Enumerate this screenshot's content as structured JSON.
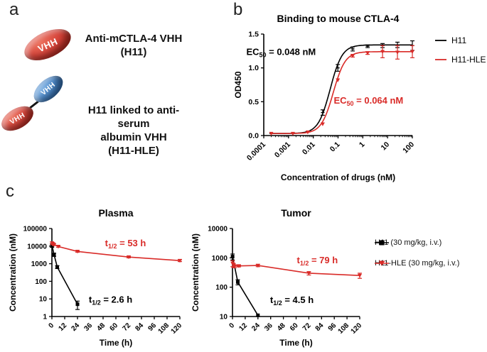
{
  "panels": {
    "a_label": "a",
    "b_label": "b",
    "c_label": "c"
  },
  "panel_a": {
    "molecule1": {
      "domain_label": "VHH",
      "caption": [
        "Anti-mCTLA-4 VHH",
        "(H11)"
      ]
    },
    "molecule2": {
      "blue_domain_label": "VHH",
      "red_domain_label": "VHH",
      "caption": [
        "H11 linked to anti-serum",
        "albumin VHH",
        "(H11-HLE)"
      ]
    },
    "colors": {
      "vhh_red": "#c93a31",
      "vhh_blue": "#4080c4"
    }
  },
  "panel_c": {
    "legend": {
      "items": [
        {
          "label": "H11 (30 mg/kg, i.v.)",
          "color": "#000000",
          "marker": "square"
        },
        {
          "label": "H11-HLE (30 mg/kg, i.v.)",
          "color": "#d92b28",
          "marker": "triangle"
        }
      ]
    }
  },
  "chart_data": [
    {
      "type": "line",
      "title": "Binding to mouse CTLA-4",
      "xlabel": "Concentration of drugs (nM)",
      "ylabel": "OD450",
      "xscale": "log",
      "xlim": [
        0.0001,
        100
      ],
      "yscale": "linear",
      "ylim": [
        0,
        1.5
      ],
      "xticks": [
        0.0001,
        0.001,
        0.01,
        0.1,
        1,
        10,
        100
      ],
      "xtick_labels": [
        "0.0001",
        "0.001",
        "0.01",
        "0.1",
        "1",
        "10",
        "100"
      ],
      "yticks": [
        0,
        0.5,
        1.0,
        1.5
      ],
      "ytick_labels": [
        "0.0",
        "0.5",
        "1.0",
        "1.5"
      ],
      "grid": false,
      "legend_position": "right",
      "series": [
        {
          "name": "H11",
          "color": "#000000",
          "marker": "tick",
          "ec50_nM": 0.048,
          "top": 1.34,
          "bottom": 0.03,
          "hill": 1.8,
          "points": {
            "x": [
              0.0002,
              0.0015,
              0.006,
              0.024,
              0.098,
              0.39,
              1.56,
              6.25,
              25,
              100
            ],
            "y": [
              0.03,
              0.03,
              0.06,
              0.34,
              1.0,
              1.28,
              1.32,
              1.33,
              1.34,
              1.33
            ],
            "err": [
              0,
              0,
              0,
              0.04,
              0.05,
              0.03,
              0.02,
              0.03,
              0.04,
              0.07
            ]
          }
        },
        {
          "name": "H11-HLE",
          "color": "#d92b28",
          "marker": "triangle",
          "ec50_nM": 0.064,
          "top": 1.24,
          "bottom": 0.03,
          "hill": 1.8,
          "points": {
            "x": [
              0.0002,
              0.0015,
              0.006,
              0.024,
              0.098,
              0.39,
              1.56,
              6.25,
              25,
              100
            ],
            "y": [
              0.03,
              0.03,
              0.05,
              0.17,
              0.82,
              1.18,
              1.22,
              1.24,
              1.23,
              1.24
            ],
            "err": [
              0,
              0,
              0,
              0,
              0,
              0.02,
              0.02,
              0.09,
              0.1,
              0.09
            ]
          }
        }
      ],
      "annotations": [
        {
          "segments": [
            {
              "t": "EC"
            },
            {
              "t": "50",
              "sub": true
            },
            {
              "t": " = 0.048 nM",
              "rise": true
            }
          ],
          "color": "#000000",
          "x": 0.0005,
          "y": 1.19
        },
        {
          "segments": [
            {
              "t": "EC"
            },
            {
              "t": "50",
              "sub": true
            },
            {
              "t": " = 0.064 nM",
              "rise": true
            }
          ],
          "color": "#d92b28",
          "x": 1.7,
          "y": 0.47
        }
      ]
    },
    {
      "type": "line",
      "title": "Plasma",
      "xlabel": "Time (h)",
      "ylabel": "Concentration (nM)",
      "xscale": "linear",
      "xlim": [
        0,
        120
      ],
      "yscale": "log",
      "ylim": [
        1,
        100000
      ],
      "xticks": [
        0,
        12,
        24,
        36,
        48,
        60,
        72,
        84,
        96,
        108,
        120
      ],
      "xtick_labels": [
        "0",
        "12",
        "24",
        "36",
        "48",
        "60",
        "72",
        "84",
        "96",
        "108",
        "120"
      ],
      "yticks": [
        1,
        10,
        100,
        1000,
        10000,
        100000
      ],
      "ytick_labels": [
        "1",
        "10",
        "100",
        "1000",
        "10000",
        "100000"
      ],
      "grid": false,
      "series": [
        {
          "name": "H11 (30 mg/kg, i.v.)",
          "color": "#000000",
          "marker": "square",
          "points": {
            "x": [
              0.1,
              2,
              5,
              24
            ],
            "y": [
              11000,
              3300,
              650,
              5
            ],
            "err": [
              2500,
              700,
              120,
              2.5
            ]
          }
        },
        {
          "name": "H11-HLE (30 mg/kg, i.v.)",
          "color": "#d92b28",
          "marker": "triangle",
          "points": {
            "x": [
              0.1,
              1,
              2,
              6,
              24,
              72,
              120
            ],
            "y": [
              15000,
              13500,
              12000,
              9500,
              5000,
              2400,
              1500
            ],
            "err": [
              2000,
              1500,
              1200,
              900,
              500,
              250,
              180
            ]
          }
        }
      ],
      "annotations": [
        {
          "segments": [
            {
              "t": "t"
            },
            {
              "t": "1/2",
              "sub": true
            },
            {
              "t": " = 53 h",
              "rise": true
            }
          ],
          "color": "#d92b28",
          "x": 69,
          "y": 10000
        },
        {
          "segments": [
            {
              "t": "t"
            },
            {
              "t": "1/2",
              "sub": true
            },
            {
              "t": " = 2.6 h",
              "rise": true
            }
          ],
          "color": "#000000",
          "x": 55,
          "y": 6
        }
      ]
    },
    {
      "type": "line",
      "title": "Tumor",
      "xlabel": "Time (h)",
      "ylabel": "Concentration (nM)",
      "xscale": "linear",
      "xlim": [
        0,
        120
      ],
      "yscale": "log",
      "ylim": [
        10,
        10000
      ],
      "xticks": [
        0,
        12,
        24,
        36,
        48,
        60,
        72,
        84,
        96,
        108,
        120
      ],
      "xtick_labels": [
        "0",
        "12",
        "24",
        "36",
        "48",
        "60",
        "72",
        "84",
        "96",
        "108",
        "120"
      ],
      "yticks": [
        10,
        100,
        1000,
        10000
      ],
      "ytick_labels": [
        "10",
        "100",
        "1000",
        "10000"
      ],
      "grid": false,
      "series": [
        {
          "name": "H11 (30 mg/kg, i.v.)",
          "color": "#000000",
          "marker": "square",
          "points": {
            "x": [
              0.1,
              5,
              24
            ],
            "y": [
              1100,
              150,
              11
            ],
            "err": [
              250,
              30,
              0
            ]
          }
        },
        {
          "name": "H11-HLE (30 mg/kg, i.v.)",
          "color": "#d92b28",
          "marker": "triangle",
          "points": {
            "x": [
              0.1,
              1,
              2,
              6,
              24,
              72,
              120
            ],
            "y": [
              650,
              560,
              520,
              530,
              550,
              300,
              250
            ],
            "err": [
              150,
              90,
              60,
              40,
              50,
              40,
              50
            ]
          }
        }
      ],
      "annotations": [
        {
          "segments": [
            {
              "t": "t"
            },
            {
              "t": "1/2",
              "sub": true
            },
            {
              "t": " = 79 h",
              "rise": true
            }
          ],
          "color": "#d92b28",
          "x": 80,
          "y": 660
        },
        {
          "segments": [
            {
              "t": "t"
            },
            {
              "t": "1/2",
              "sub": true
            },
            {
              "t": " = 4.5 h",
              "rise": true
            }
          ],
          "color": "#000000",
          "x": 56,
          "y": 29
        }
      ]
    }
  ]
}
